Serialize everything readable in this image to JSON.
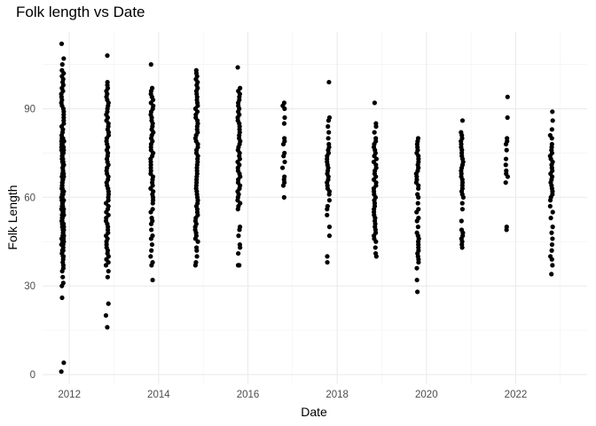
{
  "chart_data": {
    "type": "scatter",
    "title": "Folk length vs Date",
    "xlabel": "Date",
    "ylabel": "Folk Length",
    "xlim": [
      2011.4,
      2023.6
    ],
    "ylim": [
      -3,
      116
    ],
    "x_ticks": [
      2012,
      2014,
      2016,
      2018,
      2020,
      2022
    ],
    "x_tick_labels": [
      "2012",
      "2014",
      "2016",
      "2018",
      "2020",
      "2022"
    ],
    "y_ticks": [
      0,
      30,
      60,
      90
    ],
    "y_tick_labels": [
      "0",
      "30",
      "60",
      "90"
    ],
    "grid": true,
    "legend": "none",
    "point_color": "#000000",
    "clusters": [
      {
        "x": 2011.85,
        "values": [
          1,
          4,
          26,
          30,
          31,
          33,
          35,
          36,
          37,
          38,
          39,
          40,
          40,
          41,
          42,
          42,
          43,
          44,
          44,
          45,
          45,
          46,
          46,
          47,
          47,
          48,
          48,
          49,
          49,
          50,
          50,
          51,
          51,
          52,
          52,
          53,
          53,
          54,
          54,
          55,
          55,
          56,
          56,
          57,
          57,
          58,
          58,
          59,
          59,
          60,
          60,
          61,
          61,
          62,
          62,
          63,
          63,
          64,
          64,
          65,
          65,
          66,
          66,
          67,
          67,
          68,
          68,
          69,
          69,
          70,
          70,
          71,
          71,
          72,
          72,
          73,
          73,
          74,
          74,
          75,
          75,
          76,
          76,
          77,
          77,
          78,
          78,
          79,
          79,
          80,
          80,
          81,
          82,
          83,
          84,
          85,
          86,
          87,
          88,
          89,
          90,
          91,
          92,
          93,
          94,
          95,
          96,
          97,
          98,
          99,
          100,
          101,
          102,
          103,
          105,
          107,
          112
        ]
      },
      {
        "x": 2012.85,
        "values": [
          16,
          20,
          24,
          33,
          35,
          37,
          38,
          39,
          40,
          41,
          42,
          43,
          44,
          45,
          46,
          47,
          48,
          49,
          50,
          51,
          52,
          53,
          54,
          55,
          56,
          57,
          58,
          59,
          60,
          61,
          62,
          63,
          64,
          65,
          66,
          67,
          68,
          69,
          70,
          71,
          72,
          73,
          74,
          75,
          76,
          77,
          78,
          79,
          80,
          81,
          82,
          83,
          84,
          85,
          86,
          87,
          88,
          89,
          90,
          91,
          92,
          93,
          94,
          95,
          96,
          97,
          98,
          99,
          108
        ]
      },
      {
        "x": 2013.85,
        "values": [
          32,
          37,
          38,
          40,
          42,
          44,
          46,
          47,
          49,
          51,
          52,
          53,
          55,
          56,
          58,
          59,
          60,
          61,
          62,
          63,
          64,
          65,
          66,
          67,
          68,
          69,
          70,
          71,
          72,
          73,
          74,
          75,
          76,
          77,
          78,
          79,
          80,
          81,
          82,
          83,
          84,
          85,
          86,
          87,
          88,
          89,
          90,
          91,
          92,
          93,
          94,
          95,
          96,
          97,
          105
        ]
      },
      {
        "x": 2014.85,
        "values": [
          37,
          38,
          40,
          42,
          43,
          45,
          46,
          47,
          48,
          49,
          50,
          51,
          52,
          53,
          54,
          55,
          56,
          57,
          58,
          59,
          60,
          61,
          62,
          63,
          64,
          65,
          66,
          67,
          68,
          69,
          70,
          71,
          72,
          73,
          74,
          75,
          76,
          77,
          78,
          79,
          80,
          81,
          82,
          83,
          84,
          85,
          86,
          87,
          88,
          89,
          90,
          91,
          92,
          93,
          94,
          95,
          96,
          97,
          98,
          99,
          100,
          101,
          102,
          103
        ]
      },
      {
        "x": 2015.8,
        "values": [
          37,
          37,
          41,
          43,
          44,
          47,
          49,
          50,
          56,
          57,
          58,
          59,
          60,
          61,
          62,
          63,
          64,
          65,
          66,
          67,
          68,
          69,
          70,
          71,
          72,
          73,
          74,
          75,
          76,
          77,
          78,
          79,
          80,
          81,
          82,
          83,
          84,
          85,
          86,
          87,
          88,
          89,
          90,
          91,
          92,
          93,
          94,
          95,
          96,
          97,
          104
        ]
      },
      {
        "x": 2016.8,
        "values": [
          60,
          64,
          65,
          66,
          67,
          70,
          72,
          74,
          75,
          78,
          79,
          80,
          85,
          87,
          90,
          91,
          92
        ]
      },
      {
        "x": 2017.8,
        "values": [
          38,
          40,
          47,
          50,
          54,
          56,
          57,
          59,
          61,
          62,
          63,
          64,
          65,
          66,
          67,
          68,
          69,
          70,
          71,
          72,
          73,
          74,
          75,
          76,
          77,
          78,
          80,
          82,
          84,
          86,
          87,
          99
        ]
      },
      {
        "x": 2018.85,
        "values": [
          40,
          41,
          43,
          45,
          46,
          47,
          48,
          49,
          50,
          51,
          52,
          53,
          54,
          55,
          56,
          57,
          58,
          59,
          60,
          61,
          62,
          63,
          64,
          65,
          66,
          67,
          68,
          69,
          70,
          71,
          72,
          73,
          74,
          75,
          76,
          77,
          78,
          79,
          80,
          82,
          84,
          85,
          92
        ]
      },
      {
        "x": 2019.8,
        "values": [
          28,
          32,
          36,
          38,
          39,
          40,
          41,
          42,
          43,
          44,
          45,
          46,
          47,
          48,
          50,
          52,
          53,
          55,
          56,
          58,
          60,
          61,
          63,
          64,
          65,
          66,
          67,
          68,
          69,
          70,
          71,
          72,
          73,
          74,
          75,
          76,
          77,
          78,
          79,
          80
        ]
      },
      {
        "x": 2020.8,
        "values": [
          43,
          44,
          45,
          46,
          47,
          48,
          49,
          52,
          56,
          58,
          60,
          61,
          62,
          63,
          64,
          65,
          66,
          67,
          68,
          69,
          70,
          71,
          72,
          73,
          74,
          75,
          76,
          77,
          78,
          79,
          80,
          81,
          82,
          86
        ]
      },
      {
        "x": 2021.8,
        "values": [
          49,
          50,
          65,
          67,
          68,
          69,
          71,
          73,
          76,
          78,
          79,
          80,
          87,
          94
        ]
      },
      {
        "x": 2022.8,
        "values": [
          34,
          37,
          39,
          40,
          42,
          44,
          46,
          48,
          50,
          53,
          55,
          57,
          59,
          60,
          61,
          62,
          63,
          64,
          65,
          66,
          67,
          68,
          69,
          70,
          71,
          72,
          73,
          74,
          75,
          76,
          77,
          78,
          80,
          81,
          83,
          86,
          89
        ]
      }
    ]
  }
}
